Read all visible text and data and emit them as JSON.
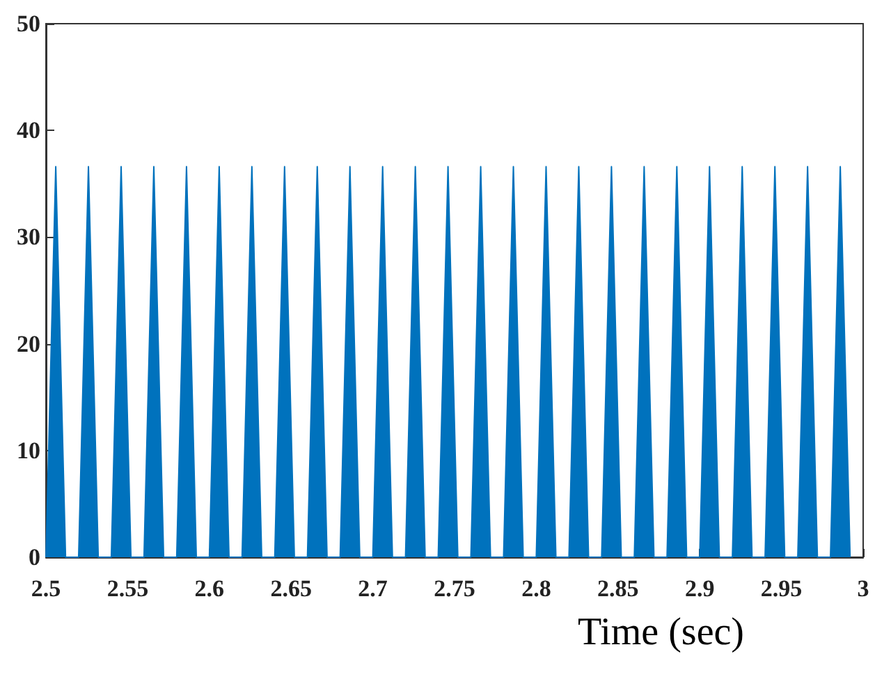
{
  "chart_data": {
    "type": "area",
    "xlabel": "Time (sec)",
    "x": [
      2.5,
      2.506,
      2.512,
      2.52,
      2.526,
      2.532,
      2.54,
      2.546,
      2.552,
      2.56,
      2.566,
      2.572,
      2.58,
      2.586,
      2.592,
      2.6,
      2.606,
      2.612,
      2.62,
      2.626,
      2.632,
      2.64,
      2.646,
      2.652,
      2.66,
      2.666,
      2.672,
      2.68,
      2.686,
      2.692,
      2.7,
      2.706,
      2.712,
      2.72,
      2.726,
      2.732,
      2.74,
      2.746,
      2.752,
      2.76,
      2.766,
      2.772,
      2.78,
      2.786,
      2.792,
      2.8,
      2.806,
      2.812,
      2.82,
      2.826,
      2.832,
      2.84,
      2.846,
      2.852,
      2.86,
      2.866,
      2.872,
      2.88,
      2.886,
      2.892,
      2.9,
      2.906,
      2.912,
      2.92,
      2.926,
      2.932,
      2.94,
      2.946,
      2.952,
      2.96,
      2.966,
      2.972,
      2.98,
      2.986,
      2.992
    ],
    "series": [
      {
        "color": "#0072bd",
        "values": [
          0,
          36.6,
          0,
          0,
          36.6,
          0,
          0,
          36.6,
          0,
          0,
          36.6,
          0,
          0,
          36.6,
          0,
          0,
          36.6,
          0,
          0,
          36.6,
          0,
          0,
          36.6,
          0,
          0,
          36.6,
          0,
          0,
          36.6,
          0,
          0,
          36.6,
          0,
          0,
          36.6,
          0,
          0,
          36.6,
          0,
          0,
          36.6,
          0,
          0,
          36.6,
          0,
          0,
          36.6,
          0,
          0,
          36.6,
          0,
          0,
          36.6,
          0,
          0,
          36.6,
          0,
          0,
          36.6,
          0,
          0,
          36.6,
          0,
          0,
          36.6,
          0,
          0,
          36.6,
          0,
          0,
          36.6,
          0,
          0,
          36.6,
          0
        ]
      }
    ],
    "xlim": [
      2.5,
      3
    ],
    "xticks": [
      2.5,
      2.55,
      2.6,
      2.65,
      2.7,
      2.75,
      2.8,
      2.85,
      2.9,
      2.95,
      3
    ],
    "ylim": [
      0,
      50
    ],
    "yticks": [
      0,
      10,
      20,
      30,
      40,
      50
    ],
    "grid": false,
    "marker": "none",
    "line_style": "solid"
  }
}
